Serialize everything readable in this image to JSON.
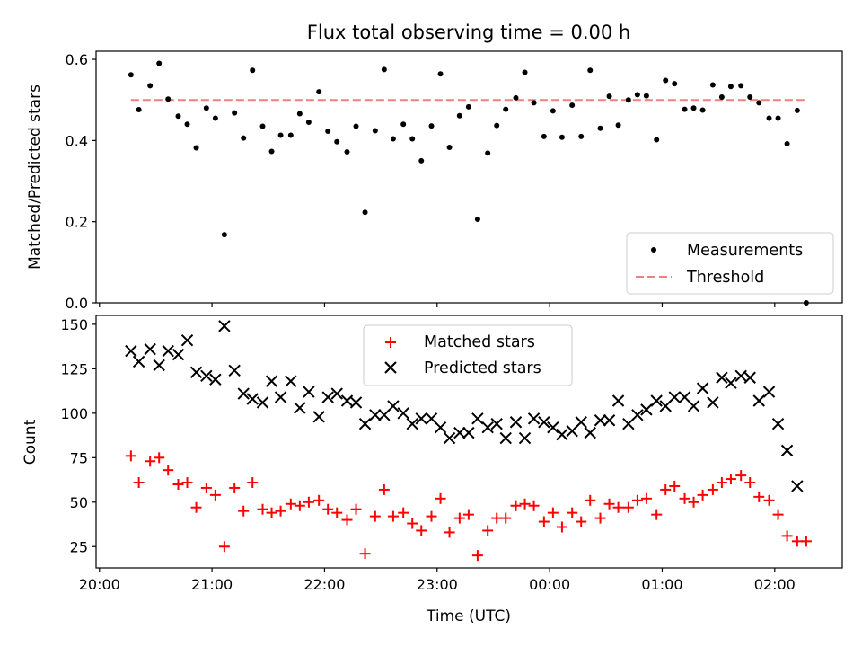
{
  "chart_data": [
    {
      "type": "scatter",
      "title": "Flux total observing time = 0.00 h",
      "ylabel": "Matched/Predicted stars",
      "ylim": [
        0,
        0.62
      ],
      "xlim_hours": [
        19.97,
        26.6
      ],
      "yticks": [
        0.0,
        0.2,
        0.4,
        0.6
      ],
      "ytick_labels": [
        "0.0",
        "0.2",
        "0.4",
        "0.6"
      ],
      "legend_position": "lower-right",
      "threshold": {
        "name": "Threshold",
        "value": 0.5,
        "color": "#f08080",
        "x_range_hours": [
          20.28,
          26.28
        ]
      },
      "series": [
        {
          "name": "Measurements",
          "marker": "dot",
          "color": "#000000",
          "points": [
            [
              20.28,
              0.562
            ],
            [
              20.35,
              0.476
            ],
            [
              20.45,
              0.535
            ],
            [
              20.53,
              0.59
            ],
            [
              20.61,
              0.502
            ],
            [
              20.7,
              0.46
            ],
            [
              20.78,
              0.44
            ],
            [
              20.86,
              0.382
            ],
            [
              20.95,
              0.48
            ],
            [
              21.03,
              0.455
            ],
            [
              21.11,
              0.168
            ],
            [
              21.2,
              0.468
            ],
            [
              21.28,
              0.406
            ],
            [
              21.36,
              0.573
            ],
            [
              21.45,
              0.435
            ],
            [
              21.53,
              0.373
            ],
            [
              21.61,
              0.413
            ],
            [
              21.7,
              0.413
            ],
            [
              21.78,
              0.466
            ],
            [
              21.86,
              0.445
            ],
            [
              21.95,
              0.52
            ],
            [
              22.03,
              0.423
            ],
            [
              22.11,
              0.397
            ],
            [
              22.2,
              0.372
            ],
            [
              22.28,
              0.435
            ],
            [
              22.36,
              0.223
            ],
            [
              22.45,
              0.424
            ],
            [
              22.53,
              0.575
            ],
            [
              22.61,
              0.404
            ],
            [
              22.7,
              0.44
            ],
            [
              22.78,
              0.404
            ],
            [
              22.86,
              0.35
            ],
            [
              22.95,
              0.436
            ],
            [
              23.03,
              0.564
            ],
            [
              23.11,
              0.383
            ],
            [
              23.2,
              0.461
            ],
            [
              23.28,
              0.483
            ],
            [
              23.36,
              0.206
            ],
            [
              23.45,
              0.369
            ],
            [
              23.53,
              0.437
            ],
            [
              23.61,
              0.477
            ],
            [
              23.7,
              0.505
            ],
            [
              23.78,
              0.568
            ],
            [
              23.86,
              0.493
            ],
            [
              23.95,
              0.41
            ],
            [
              24.03,
              0.473
            ],
            [
              24.11,
              0.408
            ],
            [
              24.2,
              0.487
            ],
            [
              24.28,
              0.41
            ],
            [
              24.36,
              0.573
            ],
            [
              24.45,
              0.43
            ],
            [
              24.53,
              0.509
            ],
            [
              24.61,
              0.438
            ],
            [
              24.7,
              0.5
            ],
            [
              24.78,
              0.513
            ],
            [
              24.86,
              0.51
            ],
            [
              24.95,
              0.402
            ],
            [
              25.03,
              0.548
            ],
            [
              25.11,
              0.54
            ],
            [
              25.2,
              0.477
            ],
            [
              25.28,
              0.48
            ],
            [
              25.36,
              0.475
            ],
            [
              25.45,
              0.537
            ],
            [
              25.53,
              0.507
            ],
            [
              25.61,
              0.533
            ],
            [
              25.7,
              0.535
            ],
            [
              25.78,
              0.507
            ],
            [
              25.86,
              0.493
            ],
            [
              25.95,
              0.455
            ],
            [
              26.03,
              0.455
            ],
            [
              26.11,
              0.392
            ],
            [
              26.2,
              0.474
            ],
            [
              26.28,
              0.0
            ]
          ]
        }
      ]
    },
    {
      "type": "scatter",
      "xlabel": "Time (UTC)",
      "ylabel": "Count",
      "ylim": [
        13,
        155
      ],
      "xlim_hours": [
        19.97,
        26.6
      ],
      "yticks": [
        25,
        50,
        75,
        100,
        125,
        150
      ],
      "ytick_labels": [
        "25",
        "50",
        "75",
        "100",
        "125",
        "150"
      ],
      "xticks_hours": [
        20,
        21,
        22,
        23,
        24,
        25,
        26
      ],
      "xtick_labels": [
        "20:00",
        "21:00",
        "22:00",
        "23:00",
        "00:00",
        "01:00",
        "02:00"
      ],
      "legend_position": "top-center",
      "series": [
        {
          "name": "Matched stars",
          "marker": "plus",
          "color": "#ff0000",
          "points": [
            [
              20.28,
              76
            ],
            [
              20.35,
              61
            ],
            [
              20.45,
              73
            ],
            [
              20.53,
              75
            ],
            [
              20.61,
              68
            ],
            [
              20.7,
              60
            ],
            [
              20.78,
              61
            ],
            [
              20.86,
              47
            ],
            [
              20.95,
              58
            ],
            [
              21.03,
              54
            ],
            [
              21.11,
              25
            ],
            [
              21.2,
              58
            ],
            [
              21.28,
              45
            ],
            [
              21.36,
              61
            ],
            [
              21.45,
              46
            ],
            [
              21.53,
              44
            ],
            [
              21.61,
              45
            ],
            [
              21.7,
              49
            ],
            [
              21.78,
              48
            ],
            [
              21.86,
              50
            ],
            [
              21.95,
              51
            ],
            [
              22.03,
              46
            ],
            [
              22.11,
              44
            ],
            [
              22.2,
              40
            ],
            [
              22.28,
              46
            ],
            [
              22.36,
              21
            ],
            [
              22.45,
              42
            ],
            [
              22.53,
              57
            ],
            [
              22.61,
              42
            ],
            [
              22.7,
              44
            ],
            [
              22.78,
              38
            ],
            [
              22.86,
              34
            ],
            [
              22.95,
              42
            ],
            [
              23.03,
              52
            ],
            [
              23.11,
              33
            ],
            [
              23.2,
              41
            ],
            [
              23.28,
              43
            ],
            [
              23.36,
              20
            ],
            [
              23.45,
              34
            ],
            [
              23.53,
              41
            ],
            [
              23.61,
              41
            ],
            [
              23.7,
              48
            ],
            [
              23.78,
              49
            ],
            [
              23.86,
              48
            ],
            [
              23.95,
              39
            ],
            [
              24.03,
              44
            ],
            [
              24.11,
              36
            ],
            [
              24.2,
              44
            ],
            [
              24.28,
              39
            ],
            [
              24.36,
              51
            ],
            [
              24.45,
              41
            ],
            [
              24.53,
              49
            ],
            [
              24.61,
              47
            ],
            [
              24.7,
              47
            ],
            [
              24.78,
              51
            ],
            [
              24.86,
              52
            ],
            [
              24.95,
              43
            ],
            [
              25.03,
              57
            ],
            [
              25.11,
              59
            ],
            [
              25.2,
              52
            ],
            [
              25.28,
              50
            ],
            [
              25.36,
              54
            ],
            [
              25.45,
              57
            ],
            [
              25.53,
              61
            ],
            [
              25.61,
              63
            ],
            [
              25.7,
              65
            ],
            [
              25.78,
              61
            ],
            [
              25.86,
              53
            ],
            [
              25.95,
              51
            ],
            [
              26.03,
              43
            ],
            [
              26.11,
              31
            ],
            [
              26.2,
              28
            ],
            [
              26.28,
              28
            ]
          ]
        },
        {
          "name": "Predicted stars",
          "marker": "x",
          "color": "#000000",
          "points": [
            [
              20.28,
              135
            ],
            [
              20.35,
              129
            ],
            [
              20.45,
              136
            ],
            [
              20.53,
              127
            ],
            [
              20.61,
              135
            ],
            [
              20.7,
              133
            ],
            [
              20.78,
              141
            ],
            [
              20.86,
              123
            ],
            [
              20.95,
              121
            ],
            [
              21.03,
              119
            ],
            [
              21.11,
              149
            ],
            [
              21.2,
              124
            ],
            [
              21.28,
              111
            ],
            [
              21.36,
              108
            ],
            [
              21.45,
              106
            ],
            [
              21.53,
              118
            ],
            [
              21.61,
              109
            ],
            [
              21.7,
              118
            ],
            [
              21.78,
              103
            ],
            [
              21.86,
              112
            ],
            [
              21.95,
              98
            ],
            [
              22.03,
              109
            ],
            [
              22.11,
              111
            ],
            [
              22.2,
              107
            ],
            [
              22.28,
              106
            ],
            [
              22.36,
              94
            ],
            [
              22.45,
              99
            ],
            [
              22.53,
              99
            ],
            [
              22.61,
              104
            ],
            [
              22.7,
              100
            ],
            [
              22.78,
              94
            ],
            [
              22.86,
              97
            ],
            [
              22.95,
              97
            ],
            [
              23.03,
              92
            ],
            [
              23.11,
              86
            ],
            [
              23.2,
              89
            ],
            [
              23.28,
              89
            ],
            [
              23.36,
              97
            ],
            [
              23.45,
              92
            ],
            [
              23.53,
              94
            ],
            [
              23.61,
              86
            ],
            [
              23.7,
              95
            ],
            [
              23.78,
              86
            ],
            [
              23.86,
              97
            ],
            [
              23.95,
              95
            ],
            [
              24.03,
              92
            ],
            [
              24.11,
              88
            ],
            [
              24.2,
              90
            ],
            [
              24.28,
              95
            ],
            [
              24.36,
              89
            ],
            [
              24.45,
              96
            ],
            [
              24.53,
              96
            ],
            [
              24.61,
              107
            ],
            [
              24.7,
              94
            ],
            [
              24.78,
              99
            ],
            [
              24.86,
              102
            ],
            [
              24.95,
              107
            ],
            [
              25.03,
              104
            ],
            [
              25.11,
              109
            ],
            [
              25.2,
              109
            ],
            [
              25.28,
              104
            ],
            [
              25.36,
              114
            ],
            [
              25.45,
              106
            ],
            [
              25.53,
              120
            ],
            [
              25.61,
              117
            ],
            [
              25.7,
              121
            ],
            [
              25.78,
              120
            ],
            [
              25.86,
              107
            ],
            [
              25.95,
              112
            ],
            [
              26.03,
              94
            ],
            [
              26.11,
              79
            ],
            [
              26.2,
              59
            ]
          ]
        }
      ]
    }
  ]
}
